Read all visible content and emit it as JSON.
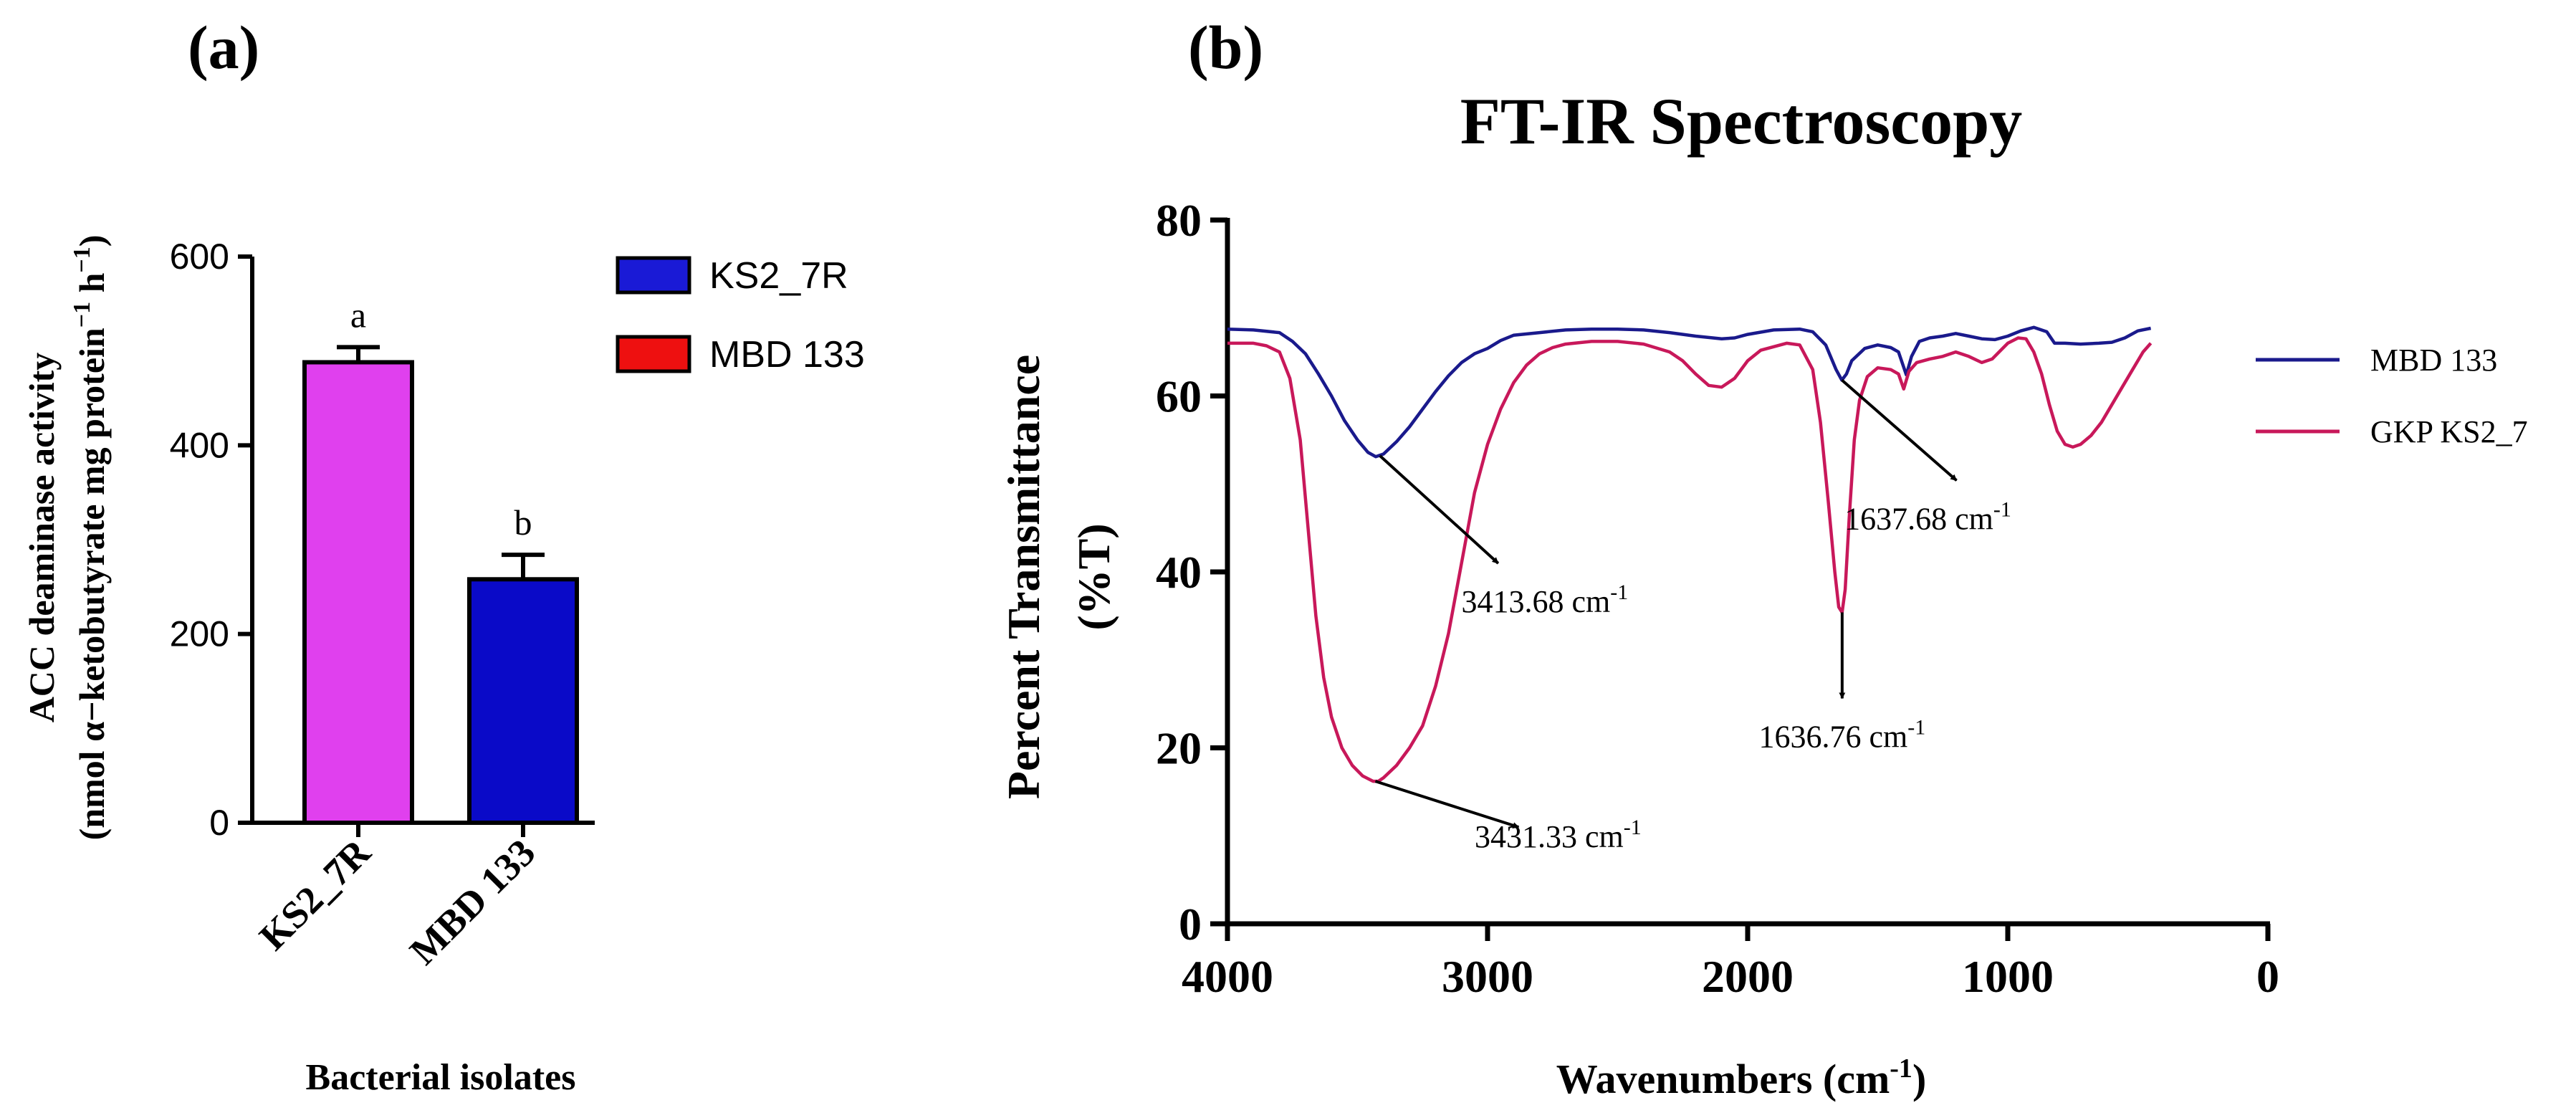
{
  "panel_a": {
    "label": "(a)",
    "ylabel_line1": "ACC deaminase activity",
    "ylabel_line2_pre": "(nmol α−ketobutyrate mg protein",
    "ylabel_line2_sup1": "−1",
    "ylabel_line2_mid": " h",
    "ylabel_line2_sup2": "−1",
    "ylabel_line2_post": ")",
    "xlabel": "Bacterial isolates"
  },
  "panel_b": {
    "label": "(b)",
    "title": "FT-IR Spectroscopy",
    "ylabel_line1": "Percent Transmittance",
    "ylabel_line2": "(%T)",
    "xlabel_pre": "Wavenumbers (cm",
    "xlabel_sup": "-1",
    "xlabel_post": ")"
  },
  "chart_data": [
    {
      "type": "bar",
      "categories": [
        "KS2_7R",
        "MBD 133"
      ],
      "values": [
        488,
        258
      ],
      "errors": [
        16,
        26
      ],
      "letters": [
        "a",
        "b"
      ],
      "bar_colors": [
        "#e040ee",
        "#0a0ac8"
      ],
      "ylim": [
        0,
        600
      ],
      "yticks": [
        0,
        200,
        400,
        600
      ],
      "legend": [
        {
          "name": "KS2_7R",
          "color": "#1a1ad6"
        },
        {
          "name": "MBD 133",
          "color": "#ee1010"
        }
      ],
      "legend_position": "right"
    },
    {
      "type": "line",
      "xlim": [
        4000,
        0
      ],
      "ylim": [
        0,
        80
      ],
      "xticks": [
        4000,
        3000,
        2000,
        1000,
        0
      ],
      "yticks": [
        0,
        20,
        40,
        60,
        80
      ],
      "series": [
        {
          "name": "MBD 133",
          "color": "#1a1a8c",
          "points": [
            [
              4000,
              67.6
            ],
            [
              3900,
              67.5
            ],
            [
              3800,
              67.2
            ],
            [
              3750,
              66.2
            ],
            [
              3700,
              64.8
            ],
            [
              3650,
              62.5
            ],
            [
              3600,
              60.0
            ],
            [
              3550,
              57.2
            ],
            [
              3500,
              55.0
            ],
            [
              3460,
              53.6
            ],
            [
              3430,
              53.1
            ],
            [
              3400,
              53.4
            ],
            [
              3350,
              54.8
            ],
            [
              3300,
              56.5
            ],
            [
              3250,
              58.5
            ],
            [
              3200,
              60.5
            ],
            [
              3150,
              62.3
            ],
            [
              3100,
              63.8
            ],
            [
              3050,
              64.8
            ],
            [
              3000,
              65.4
            ],
            [
              2950,
              66.3
            ],
            [
              2900,
              66.9
            ],
            [
              2800,
              67.2
            ],
            [
              2700,
              67.5
            ],
            [
              2600,
              67.6
            ],
            [
              2500,
              67.6
            ],
            [
              2400,
              67.5
            ],
            [
              2300,
              67.2
            ],
            [
              2200,
              66.8
            ],
            [
              2100,
              66.5
            ],
            [
              2050,
              66.6
            ],
            [
              2000,
              67.0
            ],
            [
              1900,
              67.5
            ],
            [
              1800,
              67.6
            ],
            [
              1750,
              67.3
            ],
            [
              1700,
              65.8
            ],
            [
              1660,
              63.0
            ],
            [
              1638,
              61.8
            ],
            [
              1620,
              62.5
            ],
            [
              1600,
              64.0
            ],
            [
              1550,
              65.4
            ],
            [
              1500,
              65.8
            ],
            [
              1450,
              65.5
            ],
            [
              1420,
              65.0
            ],
            [
              1390,
              62.4
            ],
            [
              1370,
              64.5
            ],
            [
              1340,
              66.2
            ],
            [
              1300,
              66.6
            ],
            [
              1250,
              66.8
            ],
            [
              1200,
              67.1
            ],
            [
              1150,
              66.8
            ],
            [
              1100,
              66.5
            ],
            [
              1050,
              66.4
            ],
            [
              1000,
              66.8
            ],
            [
              950,
              67.4
            ],
            [
              900,
              67.8
            ],
            [
              850,
              67.3
            ],
            [
              820,
              66.0
            ],
            [
              780,
              66.0
            ],
            [
              720,
              65.9
            ],
            [
              650,
              66.0
            ],
            [
              600,
              66.1
            ],
            [
              550,
              66.6
            ],
            [
              500,
              67.4
            ],
            [
              450,
              67.7
            ]
          ]
        },
        {
          "name": "GKP KS2_7",
          "color": "#c8185a",
          "points": [
            [
              4000,
              66.0
            ],
            [
              3900,
              66.0
            ],
            [
              3850,
              65.7
            ],
            [
              3800,
              65.0
            ],
            [
              3760,
              62.0
            ],
            [
              3720,
              55.0
            ],
            [
              3690,
              45.0
            ],
            [
              3660,
              35.0
            ],
            [
              3630,
              28.0
            ],
            [
              3600,
              23.5
            ],
            [
              3560,
              20.0
            ],
            [
              3520,
              18.0
            ],
            [
              3480,
              16.8
            ],
            [
              3440,
              16.2
            ],
            [
              3420,
              16.2
            ],
            [
              3400,
              16.6
            ],
            [
              3350,
              18.0
            ],
            [
              3300,
              20.0
            ],
            [
              3250,
              22.5
            ],
            [
              3200,
              27.0
            ],
            [
              3150,
              33.0
            ],
            [
              3100,
              41.0
            ],
            [
              3050,
              49.0
            ],
            [
              3000,
              54.5
            ],
            [
              2950,
              58.5
            ],
            [
              2900,
              61.5
            ],
            [
              2850,
              63.5
            ],
            [
              2800,
              64.8
            ],
            [
              2750,
              65.5
            ],
            [
              2700,
              65.9
            ],
            [
              2600,
              66.2
            ],
            [
              2500,
              66.2
            ],
            [
              2400,
              65.9
            ],
            [
              2300,
              65.0
            ],
            [
              2250,
              64.0
            ],
            [
              2200,
              62.5
            ],
            [
              2150,
              61.2
            ],
            [
              2100,
              61.0
            ],
            [
              2050,
              62.0
            ],
            [
              2000,
              64.0
            ],
            [
              1950,
              65.2
            ],
            [
              1900,
              65.6
            ],
            [
              1850,
              66.0
            ],
            [
              1800,
              65.8
            ],
            [
              1750,
              63.0
            ],
            [
              1720,
              57.0
            ],
            [
              1690,
              48.0
            ],
            [
              1665,
              40.0
            ],
            [
              1650,
              36.0
            ],
            [
              1637,
              35.4
            ],
            [
              1625,
              38.0
            ],
            [
              1610,
              46.0
            ],
            [
              1590,
              55.0
            ],
            [
              1570,
              59.5
            ],
            [
              1540,
              62.2
            ],
            [
              1500,
              63.2
            ],
            [
              1450,
              63.0
            ],
            [
              1420,
              62.5
            ],
            [
              1400,
              60.8
            ],
            [
              1380,
              62.8
            ],
            [
              1350,
              63.8
            ],
            [
              1300,
              64.2
            ],
            [
              1250,
              64.5
            ],
            [
              1200,
              65.0
            ],
            [
              1150,
              64.5
            ],
            [
              1100,
              63.8
            ],
            [
              1060,
              64.2
            ],
            [
              1000,
              66.0
            ],
            [
              960,
              66.6
            ],
            [
              930,
              66.5
            ],
            [
              900,
              65.0
            ],
            [
              870,
              62.5
            ],
            [
              840,
              59.0
            ],
            [
              810,
              56.0
            ],
            [
              780,
              54.5
            ],
            [
              750,
              54.2
            ],
            [
              720,
              54.5
            ],
            [
              680,
              55.5
            ],
            [
              640,
              57.0
            ],
            [
              600,
              59.0
            ],
            [
              560,
              61.0
            ],
            [
              520,
              63.0
            ],
            [
              480,
              65.0
            ],
            [
              450,
              66.0
            ]
          ]
        }
      ],
      "annotations": [
        {
          "text": "3413.68 cm",
          "sup": "-1",
          "point": [
            3413.68,
            53.2
          ]
        },
        {
          "text": "3431.33 cm",
          "sup": "-1",
          "point": [
            3431.33,
            16.2
          ]
        },
        {
          "text": "1636.76 cm",
          "sup": "-1",
          "point": [
            1636.76,
            35.4
          ]
        },
        {
          "text": "1637.68 cm",
          "sup": "-1",
          "point": [
            1637.68,
            61.8
          ]
        }
      ],
      "legend_position": "right"
    }
  ]
}
